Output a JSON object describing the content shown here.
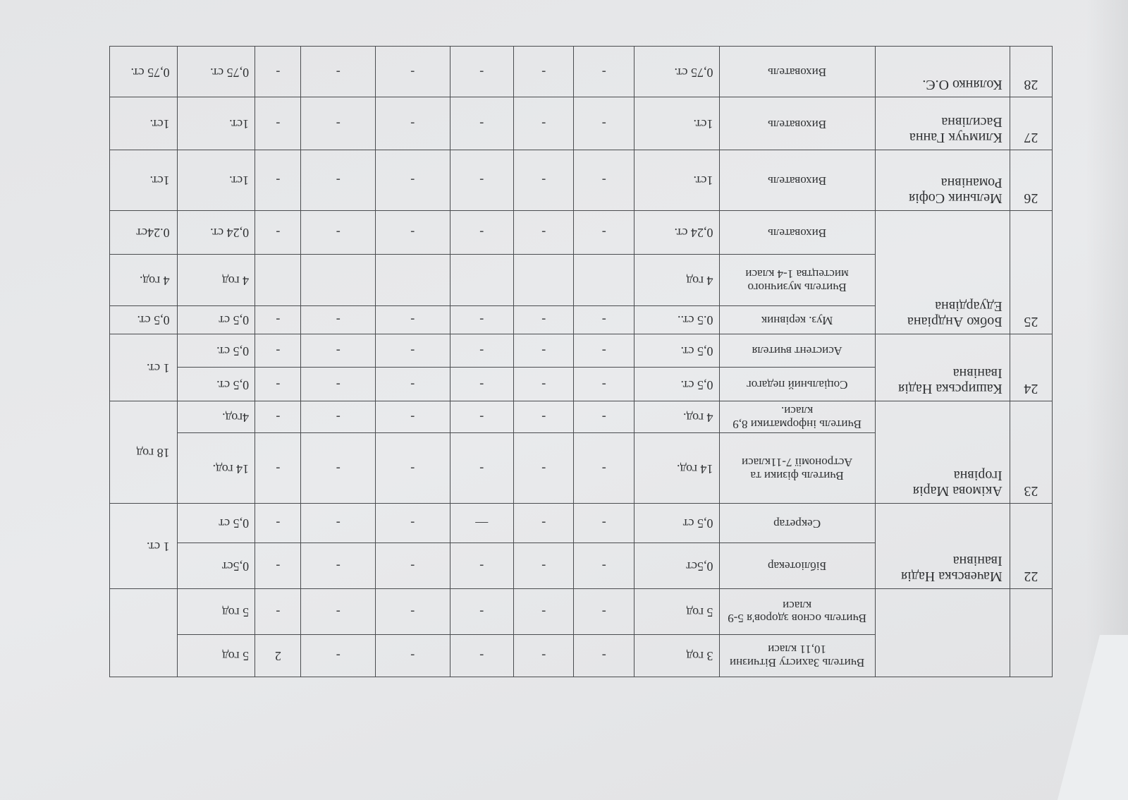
{
  "document": {
    "orientation": "upside-down (rotated 180°)",
    "persons": [
      {
        "num": "",
        "name": "",
        "total": "",
        "positions": [
          {
            "title": "Вчитель Захисту Вітчизни 10,11 класи",
            "v1": "3 год",
            "d": [
              "-",
              "-",
              "-",
              "-",
              "-",
              "2"
            ],
            "v2": "5 год"
          },
          {
            "title": "Вчитель основ здоров'я 5-9 класи",
            "v1": "5 год",
            "d": [
              "-",
              "-",
              "-",
              "-",
              "-",
              "-"
            ],
            "v2": "5 год"
          }
        ]
      },
      {
        "num": "22",
        "name": "Мачевська Надія Іванівна",
        "total": "1 ст.",
        "positions": [
          {
            "title": "Бібліотекар",
            "v1": "0,5ст",
            "d": [
              "-",
              "-",
              "-",
              "-",
              "-",
              "-"
            ],
            "v2": "0,5ст"
          },
          {
            "title": "Секретар",
            "v1": "0,5 ст",
            "d": [
              "-",
              "-",
              "—",
              "-",
              "-",
              "-"
            ],
            "v2": "0,5 ст"
          }
        ]
      },
      {
        "num": "23",
        "name": "Акімова Марія Ігорівна",
        "total": "18 год",
        "positions": [
          {
            "title": "Вчитель фізики та Астрономії 7-11класи",
            "v1": "14 год.",
            "d": [
              "-",
              "-",
              "-",
              "-",
              "-",
              "-"
            ],
            "v2": "14 год."
          },
          {
            "title": "Вчитель інформатики 8,9 класи.",
            "v1": "4 год.",
            "d": [
              "-",
              "-",
              "-",
              "-",
              "-",
              "-"
            ],
            "v2": "4год."
          }
        ]
      },
      {
        "num": "24",
        "name": "Каширська Надія Іванівна",
        "total": "1 ст.",
        "positions": [
          {
            "title": "Соціальний педагог",
            "v1": "0,5 ст.",
            "d": [
              "-",
              "-",
              "-",
              "-",
              "-",
              "-"
            ],
            "v2": "0,5 ст."
          },
          {
            "title": "Асистент вчителя",
            "v1": "0,5 ст.",
            "d": [
              "-",
              "-",
              "-",
              "-",
              "-",
              "-"
            ],
            "v2": "0,5 ст."
          }
        ]
      },
      {
        "num": "25",
        "name": "Бобко Андріана Едуардівна",
        "positions": [
          {
            "title": "Муз. керівник",
            "v1": "0.5 ст..",
            "d": [
              "-",
              "-",
              "-",
              "-",
              "-",
              "-"
            ],
            "v2": "0,5 ст",
            "total": "0,5 ст."
          },
          {
            "title": "Вчитель музичного мистецтва 1-4 класи",
            "v1": "4 год",
            "d": [
              "",
              "",
              "",
              "",
              "",
              ""
            ],
            "v2": "4 год",
            "total": "4 год."
          },
          {
            "title": "Вихователь",
            "v1": "0,24 ст.",
            "d": [
              "-",
              "-",
              "-",
              "-",
              "-",
              "-"
            ],
            "v2": "0,24 ст.",
            "total": "0.24ст"
          }
        ]
      },
      {
        "num": "26",
        "name": "Мельник Софія Романівна",
        "positions": [
          {
            "title": "Вихователь",
            "v1": "1ст.",
            "d": [
              "-",
              "-",
              "-",
              "-",
              "-",
              "-"
            ],
            "v2": "1ст.",
            "total": "1ст."
          }
        ]
      },
      {
        "num": "27",
        "name": "Климчук Ганна Василівна",
        "positions": [
          {
            "title": "Вихователь",
            "v1": "1ст.",
            "d": [
              "-",
              "-",
              "-",
              "-",
              "-",
              "-"
            ],
            "v2": "1ст.",
            "total": "1ст."
          }
        ]
      },
      {
        "num": "28",
        "name": "Колянко О.Є.",
        "positions": [
          {
            "title": "Вихователь",
            "v1": "0,75 ст.",
            "d": [
              "-",
              "-",
              "-",
              "-",
              "-",
              "-"
            ],
            "v2": "0,75 ст.",
            "total": "0,75 ст."
          }
        ]
      }
    ]
  }
}
